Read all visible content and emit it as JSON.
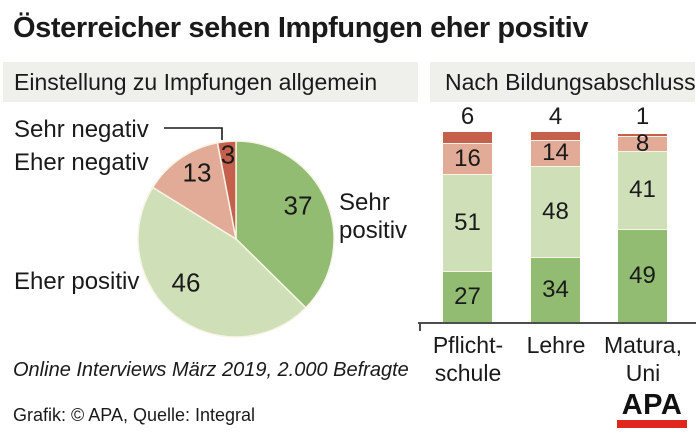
{
  "title": "Österreicher sehen Impfungen eher positiv",
  "panels": {
    "pie_heading": "Einstellung zu Impfungen allgemein",
    "bars_heading": "Nach Bildungsabschluss"
  },
  "chart_data": [
    {
      "type": "pie",
      "title": "Einstellung zu Impfungen allgemein",
      "unit": "percent",
      "start_angle": "12 o'clock, clockwise",
      "slices": [
        {
          "label": "Sehr positiv",
          "value": 37,
          "color": "#92bc72"
        },
        {
          "label": "Eher positiv",
          "value": 46,
          "color": "#cfe0b8"
        },
        {
          "label": "Eher negativ",
          "value": 13,
          "color": "#e2ab97"
        },
        {
          "label": "Sehr negativ",
          "value": 3,
          "color": "#c4604b"
        }
      ]
    },
    {
      "type": "bar",
      "subtype": "stacked",
      "title": "Nach Bildungsabschluss",
      "unit": "percent",
      "ylim": [
        0,
        100
      ],
      "grid": false,
      "legend": "none (shared with pie labels)",
      "categories": [
        "Pflicht-\nschule",
        "Lehre",
        "Matura,\nUni"
      ],
      "series": [
        {
          "name": "Sehr positiv",
          "values": [
            27,
            34,
            49
          ],
          "color": "#92bc72"
        },
        {
          "name": "Eher positiv",
          "values": [
            51,
            48,
            41
          ],
          "color": "#cfe0b8"
        },
        {
          "name": "Eher negativ",
          "values": [
            16,
            14,
            8
          ],
          "color": "#e2ab97"
        },
        {
          "name": "Sehr negativ",
          "values": [
            6,
            4,
            1
          ],
          "color": "#c4604b"
        }
      ]
    }
  ],
  "footnote": "Online Interviews März 2019, 2.000 Befragte",
  "credit": "Grafik: © APA, Quelle: Integral",
  "logo": {
    "text": "APA",
    "bar_color": "#e0261e"
  },
  "colors": {
    "sehr_positiv": "#92bc72",
    "eher_positiv": "#cfe0b8",
    "eher_negativ": "#e2ab97",
    "sehr_negativ": "#c4604b",
    "heading_bg": "#efefec",
    "axis": "#4d4d4d",
    "logo_red": "#e0261e"
  }
}
